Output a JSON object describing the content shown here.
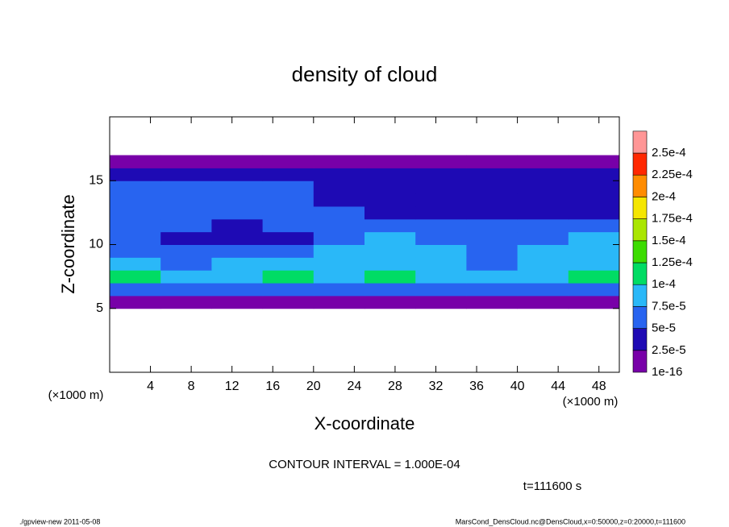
{
  "chart_data": {
    "type": "contour",
    "title": "density of cloud",
    "xlabel": "X-coordinate",
    "ylabel": "Z-coordinate",
    "x_unit": "(×1000 m)",
    "annotation": "CONTOUR INTERVAL = 1.000E-04",
    "time_label": "t=111600 s",
    "footer_left": "./gpview-new   2011-05-08",
    "footer_right": "MarsCond_DensCloud.nc@DensCloud,x=0:50000,z=0:20000,t=111600",
    "xlim": [
      0,
      50
    ],
    "ylim": [
      0,
      20
    ],
    "xticks": [
      4,
      8,
      12,
      16,
      20,
      24,
      28,
      32,
      36,
      40,
      44,
      48
    ],
    "yticks": [
      5,
      10,
      15
    ],
    "x": [
      2.5,
      7.5,
      12.5,
      17.5,
      22.5,
      27.5,
      32.5,
      37.5,
      42.5,
      47.5
    ],
    "z": [
      5.5,
      6.5,
      7.5,
      8.5,
      9.5,
      10.5,
      11.5,
      12.5,
      13.5,
      14.5,
      15.5,
      16.5
    ],
    "values": [
      [
        1e-16,
        1e-16,
        1e-16,
        1e-16,
        1e-16,
        1e-16,
        1e-16,
        1e-16,
        1e-16,
        1e-16
      ],
      [
        6e-05,
        6e-05,
        7e-05,
        6e-05,
        6e-05,
        6e-05,
        6e-05,
        6e-05,
        6e-05,
        6e-05
      ],
      [
        0.000105,
        8e-05,
        9e-05,
        0.00011,
        8e-05,
        0.000105,
        9e-05,
        8e-05,
        9e-05,
        0.000105
      ],
      [
        8e-05,
        7e-05,
        8e-05,
        9e-05,
        8e-05,
        8e-05,
        8e-05,
        7e-05,
        8e-05,
        8e-05
      ],
      [
        7e-05,
        6e-05,
        6e-05,
        7e-05,
        8e-05,
        7.5e-05,
        7.5e-05,
        6e-05,
        8e-05,
        8e-05
      ],
      [
        6e-05,
        3e-05,
        2.6e-05,
        4e-05,
        6e-05,
        7.5e-05,
        7e-05,
        6e-05,
        7e-05,
        8e-05
      ],
      [
        6e-05,
        5e-05,
        4e-05,
        5e-05,
        6.5e-05,
        6e-05,
        7e-05,
        6e-05,
        6e-05,
        6e-05
      ],
      [
        5e-05,
        6e-05,
        6e-05,
        6e-05,
        5e-05,
        3e-05,
        2.6e-05,
        3e-05,
        3e-05,
        3e-05
      ],
      [
        6e-05,
        6.5e-05,
        7e-05,
        6e-05,
        4e-05,
        2.6e-05,
        2.6e-05,
        2.6e-05,
        3e-05,
        2.6e-05
      ],
      [
        5.5e-05,
        6e-05,
        6e-05,
        5.5e-05,
        3e-05,
        2.6e-05,
        2.6e-05,
        2.6e-05,
        2.6e-05,
        2.6e-05
      ],
      [
        3e-05,
        3e-05,
        3e-05,
        2.6e-05,
        2.6e-05,
        2.6e-05,
        2.6e-05,
        2.6e-05,
        2.6e-05,
        2.6e-05
      ],
      [
        1e-16,
        1e-16,
        1e-16,
        1e-16,
        1e-16,
        1e-16,
        1e-16,
        1e-16,
        1e-16,
        1e-16
      ]
    ],
    "levels": [
      {
        "value": 1e-16,
        "label": "1e-16"
      },
      {
        "value": 2.5e-05,
        "label": "2.5e-5"
      },
      {
        "value": 5e-05,
        "label": "5e-5"
      },
      {
        "value": 7.5e-05,
        "label": "7.5e-5"
      },
      {
        "value": 0.0001,
        "label": "1e-4"
      },
      {
        "value": 0.000125,
        "label": "1.25e-4"
      },
      {
        "value": 0.00015,
        "label": "1.5e-4"
      },
      {
        "value": 0.000175,
        "label": "1.75e-4"
      },
      {
        "value": 0.0002,
        "label": "2e-4"
      },
      {
        "value": 0.000225,
        "label": "2.25e-4"
      },
      {
        "value": 0.00025,
        "label": "2.5e-4"
      }
    ],
    "colors": [
      "#7800a8",
      "#1e0ab4",
      "#2864f0",
      "#2ab8f8",
      "#00dc64",
      "#3cdc00",
      "#aae600",
      "#f5e600",
      "#ff8c00",
      "#ff2800",
      "#ff9696"
    ]
  }
}
